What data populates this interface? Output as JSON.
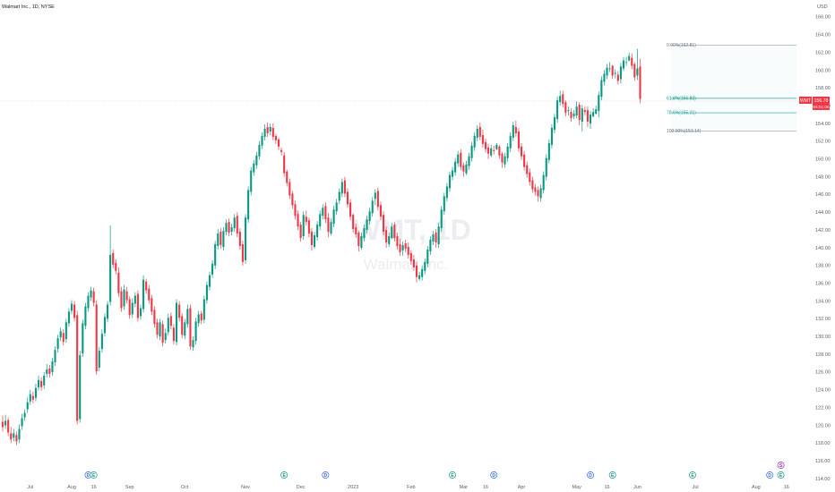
{
  "chart_data": {
    "type": "candlestick",
    "symbol_label": "Walmart Inc., 1D, NYSE",
    "watermark_ticker": "WMT, 1D",
    "watermark_name": "Walmart Inc.",
    "currency": "USD",
    "ylim": [
      113.6,
      167.0
    ],
    "y_ticks": [
      114,
      116,
      118,
      120,
      122,
      124,
      126,
      128,
      130,
      132,
      134,
      136,
      138,
      140,
      142,
      144,
      146,
      148,
      150,
      152,
      154,
      156,
      158,
      160,
      162,
      164,
      166
    ],
    "y_tick_labels": [
      "114.00",
      "116.00",
      "118.00",
      "120.00",
      "122.00",
      "124.00",
      "126.00",
      "128.00",
      "130.00",
      "132.00",
      "134.00",
      "136.00",
      "138.00",
      "140.00",
      "142.00",
      "144.00",
      "146.00",
      "148.00",
      "150.00",
      "152.00",
      "154.00",
      "156.00",
      "158.00",
      "160.00",
      "162.00",
      "164.00",
      "166.00"
    ],
    "x_labels": [
      {
        "label": "Jul",
        "bar": 10
      },
      {
        "label": "Aug",
        "bar": 25
      },
      {
        "label": "16",
        "bar": 33
      },
      {
        "label": "Sep",
        "bar": 46
      },
      {
        "label": "Oct",
        "bar": 66
      },
      {
        "label": "Nov",
        "bar": 88
      },
      {
        "label": "Dec",
        "bar": 108
      },
      {
        "label": "2023",
        "bar": 127
      },
      {
        "label": "Feb",
        "bar": 148
      },
      {
        "label": "Mar",
        "bar": 167
      },
      {
        "label": "16",
        "bar": 175
      },
      {
        "label": "Apr",
        "bar": 188
      },
      {
        "label": "May",
        "bar": 208
      },
      {
        "label": "16",
        "bar": 219
      },
      {
        "label": "Jun",
        "bar": 230
      },
      {
        "label": "Jul",
        "bar": 251
      },
      {
        "label": "Aug",
        "bar": 273
      },
      {
        "label": "16",
        "bar": 284
      }
    ],
    "price_tag": {
      "symbol": "WMT",
      "value": 156.78,
      "value_label": "156.78",
      "countdown": "04:01:00"
    },
    "fib_levels": [
      {
        "label": "0.00%(162.81)",
        "value": 162.81
      },
      {
        "label": "61.8%(156.83)",
        "value": 156.83
      },
      {
        "label": "78.6%(155.21)",
        "value": 155.21
      },
      {
        "label": "100.00%(153.14)",
        "value": 153.14
      }
    ],
    "events": [
      {
        "letter": "D",
        "kind": "dividend",
        "bar": 31
      },
      {
        "letter": "E",
        "kind": "earnings",
        "bar": 33
      },
      {
        "letter": "E",
        "kind": "earnings",
        "bar": 102
      },
      {
        "letter": "D",
        "kind": "dividend",
        "bar": 117
      },
      {
        "letter": "E",
        "kind": "earnings",
        "bar": 163
      },
      {
        "letter": "D",
        "kind": "dividend",
        "bar": 178
      },
      {
        "letter": "D",
        "kind": "dividend",
        "bar": 213
      },
      {
        "letter": "E",
        "kind": "earnings",
        "bar": 221
      },
      {
        "letter": "E",
        "kind": "earnings",
        "bar": 250
      },
      {
        "letter": "D",
        "kind": "dividend",
        "bar": 278
      },
      {
        "letter": "E",
        "kind": "earnings",
        "bar": 282
      },
      {
        "letter": "S",
        "kind": "split",
        "bar": 282
      }
    ],
    "closes": [
      119.8,
      120.5,
      119.2,
      118.4,
      119.1,
      118.2,
      119.6,
      120.8,
      121.4,
      122.6,
      123.5,
      122.9,
      124.2,
      125.1,
      124.3,
      125.6,
      126.3,
      125.8,
      127.2,
      128.5,
      129.8,
      130.6,
      129.4,
      131.6,
      132.8,
      133.7,
      132.1,
      120.5,
      127.9,
      131.5,
      133.4,
      134.6,
      135.2,
      133.8,
      126.1,
      128.4,
      130.3,
      132.2,
      133.6,
      139.2,
      138.1,
      137.4,
      134.9,
      133.2,
      135.3,
      134.1,
      132.4,
      133.8,
      134.6,
      132.1,
      133.2,
      136.4,
      135.2,
      134.1,
      132.8,
      131.4,
      130.2,
      131.6,
      129.3,
      130.4,
      132.1,
      131.2,
      129.5,
      133.8,
      132.1,
      130.2,
      131.6,
      133.1,
      128.9,
      129.6,
      131.7,
      132.5,
      131.8,
      134.2,
      135.8,
      136.9,
      138.2,
      140.4,
      141.6,
      140.3,
      141.9,
      142.8,
      141.7,
      142.3,
      143.4,
      141.6,
      140.2,
      138.4,
      143.4,
      146.5,
      148.7,
      149.5,
      150.4,
      151.6,
      152.6,
      153.4,
      152.9,
      153.6,
      152.5,
      152.1,
      151.4,
      150.8,
      148.4,
      147.3,
      145.9,
      144.8,
      143.6,
      142.4,
      141.1,
      143.7,
      142.9,
      141.6,
      140.3,
      141.4,
      142.6,
      143.8,
      144.5,
      143.2,
      141.8,
      142.9,
      144.3,
      145.1,
      146.3,
      147.4,
      146.1,
      144.9,
      143.5,
      142.1,
      141.5,
      140.2,
      141.3,
      142.2,
      143.2,
      144.1,
      145.3,
      146.2,
      144.6,
      143.5,
      141.8,
      140.6,
      141.3,
      142.4,
      141.1,
      140.2,
      139.5,
      140.3,
      139.9,
      139.2,
      138.5,
      137.8,
      136.7,
      136.9,
      137.6,
      138.4,
      139.8,
      140.9,
      141.5,
      140.6,
      142.4,
      144.3,
      145.8,
      146.9,
      148.2,
      148.7,
      149.7,
      150.5,
      149.1,
      148.6,
      149.4,
      150.3,
      151.5,
      152.6,
      153.4,
      152.5,
      151.7,
      151.1,
      150.6,
      151.2,
      150.9,
      151.6,
      150.4,
      149.6,
      150.3,
      151.4,
      152.6,
      153.8,
      152.9,
      151.2,
      150.3,
      149.1,
      148.3,
      147.4,
      146.6,
      146.3,
      145.8,
      146.7,
      148.2,
      150.1,
      151.8,
      153.5,
      154.7,
      156.6,
      157.1,
      156.2,
      155.2,
      155.5,
      154.6,
      155.1,
      155.9,
      154.4,
      155.7,
      155.3,
      154.2,
      155.0,
      155.3,
      155.6,
      157.2,
      158.9,
      159.6,
      160.3,
      160.2,
      159.4,
      159.7,
      158.8,
      160.4,
      161.1,
      160.9,
      161.6,
      160.5,
      159.2,
      160.2,
      156.78
    ],
    "opens": [
      120.4,
      120.0,
      120.6,
      119.1,
      118.6,
      118.9,
      118.4,
      119.9,
      120.9,
      121.8,
      122.7,
      123.3,
      123.1,
      124.3,
      125.0,
      124.5,
      125.8,
      126.4,
      126.0,
      127.1,
      128.6,
      129.9,
      130.4,
      129.7,
      131.5,
      132.9,
      133.6,
      132.4,
      120.7,
      128.1,
      131.2,
      133.2,
      134.4,
      135.1,
      133.6,
      126.5,
      128.6,
      130.4,
      132.0,
      133.9,
      139.4,
      138.3,
      137.2,
      135.1,
      133.4,
      135.1,
      134.2,
      132.5,
      133.7,
      134.8,
      132.3,
      133.1,
      136.2,
      135.4,
      134.3,
      133.0,
      131.6,
      130.0,
      131.4,
      129.6,
      130.5,
      132.3,
      131.0,
      129.4,
      133.6,
      132.3,
      130.1,
      131.4,
      133.2,
      128.8,
      129.5,
      131.5,
      132.6,
      131.9,
      134.1,
      135.6,
      137.0,
      138.0,
      140.2,
      141.8,
      140.1,
      141.8,
      142.9,
      141.8,
      142.2,
      143.6,
      141.8,
      140.4,
      138.6,
      143.2,
      146.3,
      148.5,
      149.3,
      150.3,
      151.5,
      152.5,
      153.6,
      153.1,
      153.5,
      152.6,
      152.2,
      151.0,
      150.4,
      148.6,
      147.4,
      146.1,
      144.9,
      143.8,
      142.6,
      141.3,
      143.5,
      143.1,
      141.8,
      140.1,
      141.2,
      142.4,
      143.6,
      144.7,
      143.4,
      141.6,
      142.7,
      144.1,
      145.3,
      146.1,
      147.6,
      146.3,
      145.1,
      143.7,
      142.3,
      141.7,
      140.0,
      141.1,
      142.0,
      143.0,
      143.9,
      145.5,
      146.4,
      144.8,
      143.7,
      142.0,
      140.4,
      141.1,
      142.6,
      141.3,
      140.4,
      139.7,
      140.5,
      140.1,
      139.4,
      138.7,
      138.0,
      136.5,
      136.7,
      137.4,
      138.2,
      139.6,
      140.7,
      141.7,
      140.4,
      142.2,
      144.1,
      145.6,
      146.7,
      148.0,
      148.5,
      149.5,
      150.7,
      149.3,
      148.4,
      149.2,
      150.1,
      151.3,
      152.4,
      153.6,
      152.7,
      151.9,
      151.3,
      150.4,
      151.0,
      151.1,
      151.4,
      150.6,
      149.4,
      150.1,
      151.2,
      152.4,
      153.6,
      153.1,
      151.4,
      150.5,
      149.3,
      148.5,
      147.6,
      146.8,
      146.5,
      145.6,
      146.5,
      148.0,
      149.9,
      151.6,
      153.3,
      154.5,
      156.4,
      157.3,
      156.4,
      155.4,
      155.3,
      154.8,
      154.9,
      156.1,
      154.2,
      155.5,
      155.5,
      154.0,
      154.8,
      155.1,
      155.4,
      157.0,
      158.7,
      159.4,
      160.1,
      160.5,
      159.6,
      159.5,
      159.0,
      160.2,
      160.9,
      161.1,
      161.4,
      160.7,
      159.4,
      160.4,
      160.9
    ],
    "highs": [
      121.1,
      121.2,
      120.9,
      119.8,
      119.6,
      119.3,
      120.1,
      121.3,
      121.8,
      123.1,
      124.0,
      123.8,
      124.7,
      125.6,
      125.4,
      126.0,
      126.9,
      126.8,
      127.6,
      128.9,
      130.2,
      131.0,
      130.8,
      132.0,
      133.2,
      134.1,
      134.0,
      132.9,
      128.4,
      131.9,
      133.8,
      135.0,
      135.6,
      135.5,
      134.1,
      128.8,
      130.8,
      132.6,
      134.0,
      142.5,
      139.8,
      138.7,
      137.8,
      135.6,
      135.8,
      135.6,
      134.5,
      134.3,
      135.0,
      135.2,
      133.6,
      136.9,
      136.5,
      135.8,
      134.7,
      133.4,
      132.0,
      132.0,
      131.8,
      130.9,
      132.6,
      132.7,
      131.4,
      134.2,
      134.0,
      132.6,
      132.0,
      133.6,
      133.6,
      130.0,
      132.1,
      132.9,
      132.9,
      134.6,
      136.2,
      137.3,
      138.6,
      140.8,
      142.1,
      142.2,
      142.3,
      143.2,
      143.3,
      142.7,
      143.8,
      144.0,
      142.2,
      140.8,
      143.8,
      146.9,
      149.1,
      149.9,
      150.8,
      152.0,
      153.0,
      153.9,
      154.1,
      154.0,
      154.0,
      152.8,
      152.4,
      151.3,
      150.8,
      148.8,
      147.8,
      146.4,
      145.3,
      144.2,
      142.9,
      144.1,
      144.2,
      143.4,
      142.2,
      141.8,
      143.0,
      144.2,
      144.9,
      145.1,
      143.9,
      143.3,
      144.7,
      145.5,
      146.7,
      147.8,
      148.0,
      146.7,
      145.5,
      143.9,
      142.7,
      141.9,
      141.7,
      142.6,
      143.6,
      144.5,
      145.7,
      146.6,
      146.8,
      145.2,
      144.1,
      142.4,
      141.7,
      142.8,
      142.9,
      141.7,
      141.0,
      140.7,
      140.9,
      140.6,
      139.7,
      139.2,
      138.4,
      137.3,
      138.0,
      138.8,
      140.2,
      141.3,
      141.9,
      142.1,
      142.8,
      144.7,
      146.2,
      147.3,
      148.6,
      149.1,
      150.1,
      150.9,
      151.1,
      149.6,
      149.8,
      150.7,
      151.9,
      153.0,
      153.8,
      154.1,
      153.3,
      152.3,
      151.7,
      151.6,
      151.5,
      151.8,
      151.6,
      150.8,
      150.7,
      151.8,
      153.0,
      154.2,
      154.3,
      153.5,
      151.8,
      150.9,
      149.7,
      148.9,
      148.0,
      147.2,
      146.9,
      147.1,
      148.6,
      150.5,
      152.2,
      153.9,
      155.1,
      157.0,
      157.7,
      157.7,
      156.6,
      155.9,
      155.7,
      155.5,
      156.5,
      156.4,
      156.1,
      155.9,
      155.9,
      155.4,
      155.7,
      156.0,
      157.6,
      159.3,
      160.0,
      160.7,
      160.9,
      160.6,
      160.1,
      159.9,
      160.8,
      161.5,
      161.5,
      162.0,
      161.9,
      160.9,
      162.4,
      161.3
    ],
    "lows": [
      119.3,
      119.6,
      118.8,
      118.0,
      118.2,
      117.8,
      118.0,
      119.5,
      120.5,
      121.4,
      122.3,
      122.5,
      122.7,
      123.9,
      123.9,
      124.1,
      125.4,
      125.4,
      125.6,
      126.7,
      128.2,
      129.5,
      129.0,
      129.3,
      131.1,
      132.5,
      131.7,
      120.1,
      120.3,
      127.7,
      130.8,
      132.8,
      134.0,
      133.4,
      125.7,
      126.1,
      128.2,
      130.0,
      131.6,
      133.5,
      137.7,
      137.0,
      134.5,
      132.8,
      133.0,
      133.7,
      132.0,
      132.1,
      133.3,
      131.7,
      131.9,
      132.7,
      134.8,
      133.7,
      132.4,
      131.0,
      129.8,
      129.6,
      128.9,
      129.2,
      130.1,
      130.8,
      129.1,
      129.0,
      131.7,
      129.8,
      129.7,
      131.0,
      128.5,
      128.4,
      129.1,
      131.1,
      131.4,
      131.5,
      133.7,
      135.2,
      136.6,
      137.6,
      139.8,
      139.9,
      139.7,
      141.4,
      141.3,
      141.4,
      141.8,
      141.2,
      139.8,
      138.0,
      138.2,
      142.8,
      145.9,
      148.1,
      148.9,
      149.9,
      151.1,
      152.1,
      152.5,
      152.7,
      152.1,
      151.7,
      151.0,
      150.4,
      148.0,
      146.9,
      145.5,
      144.4,
      143.2,
      142.0,
      140.7,
      140.9,
      142.5,
      141.2,
      139.7,
      139.9,
      140.8,
      142.0,
      143.2,
      142.8,
      141.2,
      141.4,
      142.3,
      143.7,
      144.9,
      145.7,
      145.7,
      144.5,
      143.1,
      141.7,
      141.1,
      139.6,
      139.8,
      140.7,
      141.6,
      142.6,
      143.5,
      144.8,
      144.2,
      143.1,
      141.4,
      140.0,
      140.1,
      141.0,
      140.7,
      139.8,
      139.1,
      139.1,
      139.5,
      138.8,
      138.1,
      137.4,
      136.1,
      136.3,
      136.3,
      137.0,
      137.8,
      139.2,
      140.3,
      140.0,
      140.0,
      141.8,
      143.7,
      145.2,
      146.3,
      147.6,
      148.1,
      149.1,
      148.7,
      148.0,
      148.2,
      148.8,
      149.7,
      150.9,
      152.0,
      152.1,
      151.3,
      150.7,
      150.0,
      150.2,
      150.5,
      151.0,
      150.0,
      149.0,
      149.0,
      149.7,
      150.8,
      152.0,
      152.5,
      150.8,
      149.9,
      148.7,
      147.9,
      147.0,
      146.2,
      145.9,
      145.2,
      145.2,
      146.1,
      147.6,
      149.5,
      151.2,
      152.9,
      154.1,
      156.0,
      155.8,
      154.8,
      154.9,
      154.2,
      154.5,
      154.6,
      153.8,
      153.1,
      154.9,
      153.6,
      153.4,
      154.7,
      155.0,
      154.7,
      156.6,
      158.3,
      159.0,
      159.8,
      159.0,
      159.1,
      158.4,
      158.5,
      159.9,
      160.5,
      161.0,
      160.1,
      158.8,
      158.9,
      156.3
    ]
  }
}
